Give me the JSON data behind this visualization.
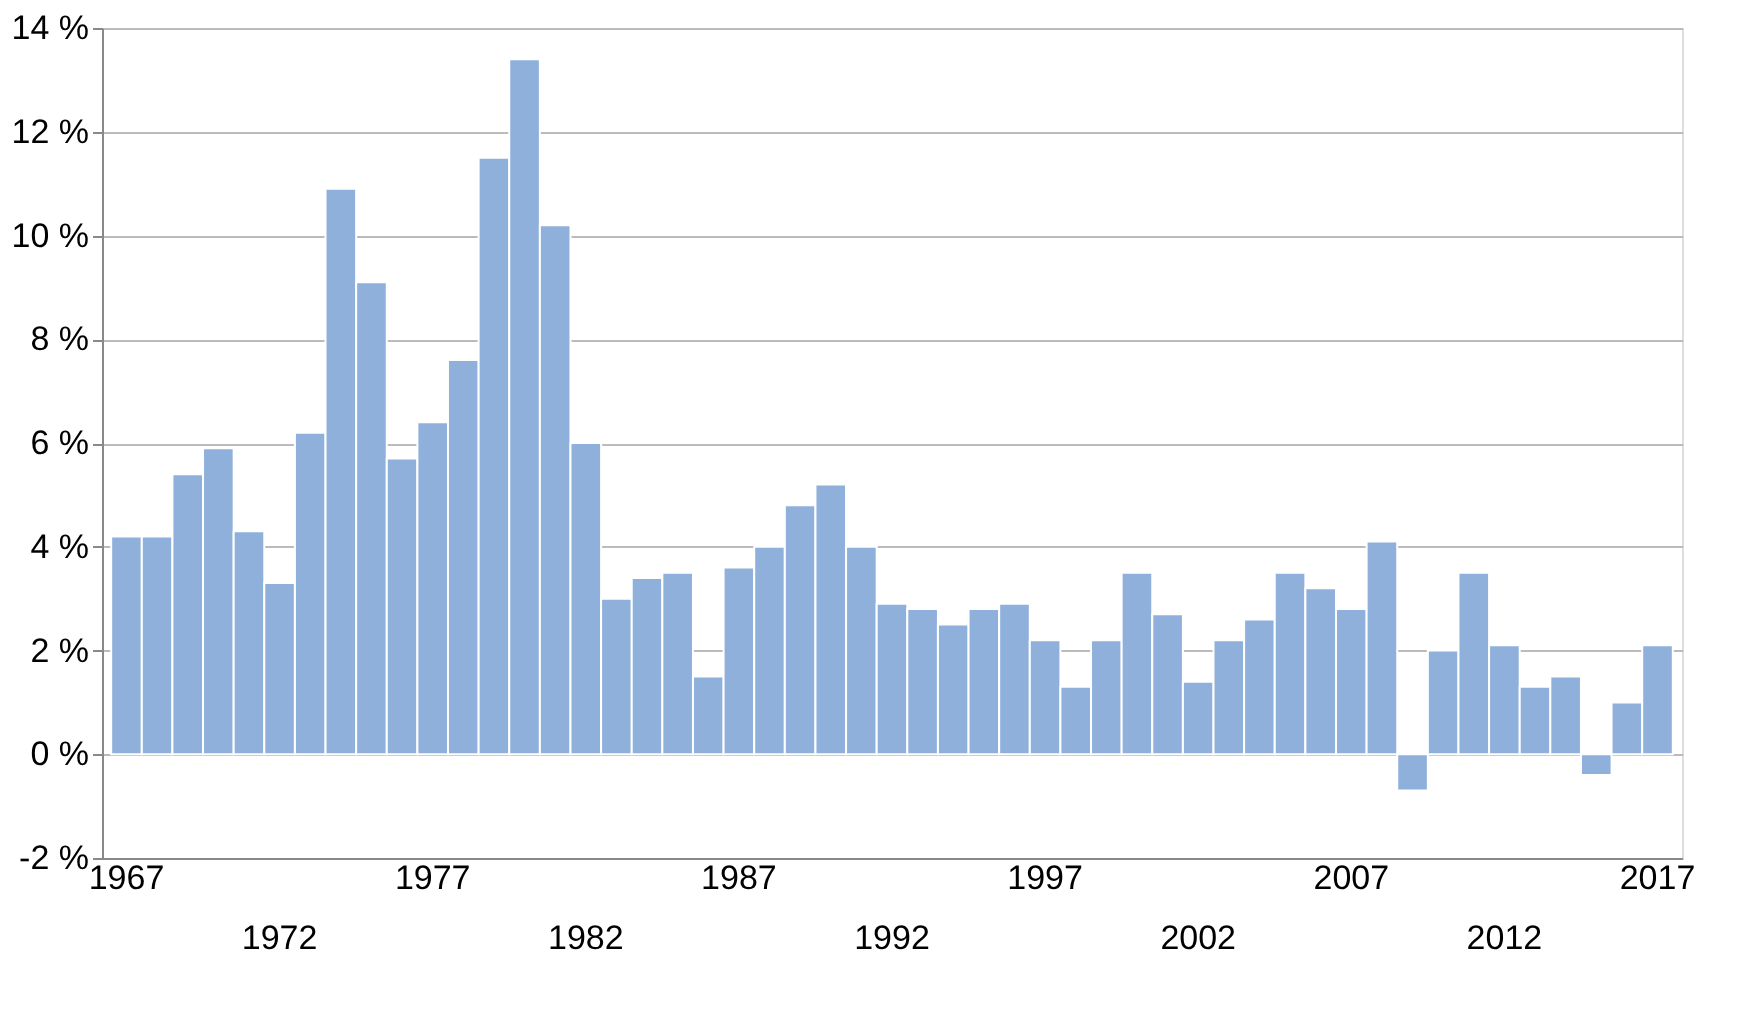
{
  "chart_data": {
    "type": "bar",
    "categories": [
      "1967",
      null,
      null,
      null,
      null,
      "1972",
      null,
      null,
      null,
      null,
      "1977",
      null,
      null,
      null,
      null,
      "1982",
      null,
      null,
      null,
      null,
      "1987",
      null,
      null,
      null,
      null,
      "1992",
      null,
      null,
      null,
      null,
      "1997",
      null,
      null,
      null,
      null,
      "2002",
      null,
      null,
      null,
      null,
      "2007",
      null,
      null,
      null,
      null,
      "2012",
      null,
      null,
      null,
      null,
      "2017"
    ],
    "values": [
      4.2,
      4.2,
      5.4,
      5.9,
      4.3,
      3.3,
      6.2,
      10.9,
      9.1,
      5.7,
      6.4,
      7.6,
      11.5,
      13.4,
      10.2,
      6.0,
      3.0,
      3.4,
      3.5,
      1.5,
      3.6,
      4.0,
      4.8,
      5.2,
      4.0,
      2.9,
      2.8,
      2.5,
      2.8,
      2.9,
      2.2,
      1.3,
      2.2,
      3.5,
      2.7,
      1.4,
      2.2,
      2.6,
      3.5,
      3.2,
      2.8,
      4.1,
      -0.7,
      2.0,
      3.5,
      2.1,
      1.3,
      1.5,
      -0.4,
      1.0,
      2.1
    ],
    "color": "#8eb0db",
    "ylim": [
      -2,
      14
    ],
    "yticks": [
      {
        "value": -2,
        "label": "-2 %"
      },
      {
        "value": 0,
        "label": "0 %"
      },
      {
        "value": 2,
        "label": "2 %"
      },
      {
        "value": 4,
        "label": "4 %"
      },
      {
        "value": 6,
        "label": "6 %"
      },
      {
        "value": 8,
        "label": "8 %"
      },
      {
        "value": 10,
        "label": "10 %"
      },
      {
        "value": 12,
        "label": "12 %"
      },
      {
        "value": 14,
        "label": "14 %"
      }
    ],
    "grid": "y"
  }
}
